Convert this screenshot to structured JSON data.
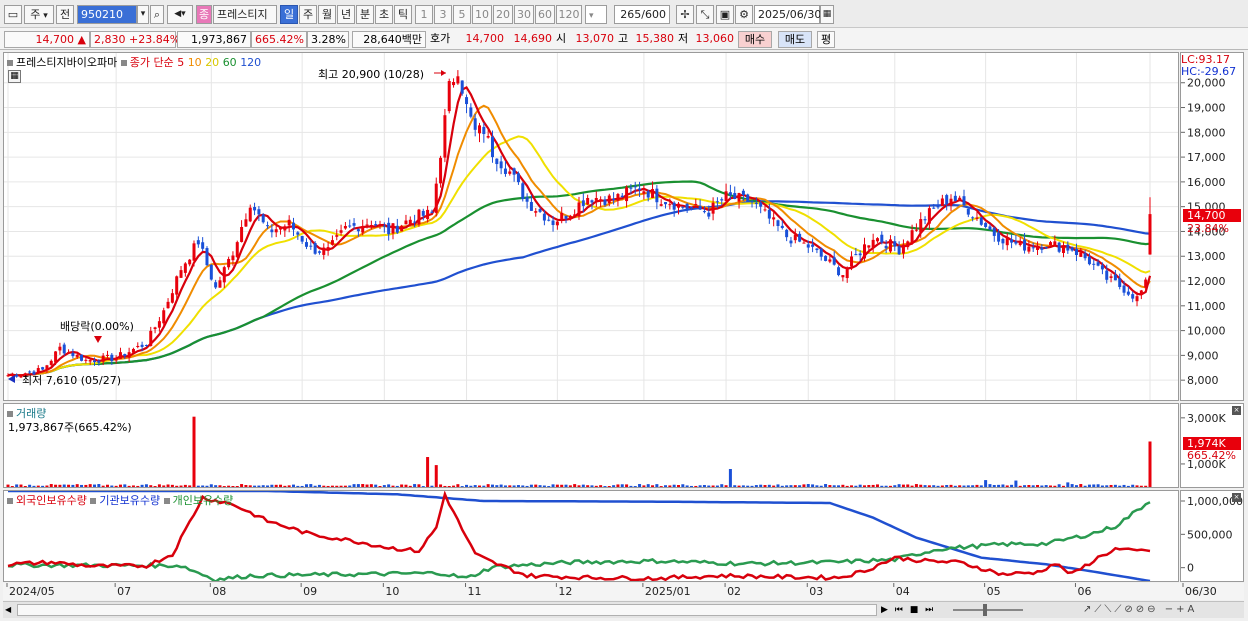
{
  "toolbar": {
    "market_label": "주",
    "prev_label": "전",
    "code": "950210",
    "name_badge": "종",
    "stock_name": "프레스티지",
    "period_day": "일",
    "period_week": "주",
    "period_month": "월",
    "period_year": "년",
    "period_minute": "분",
    "period_second": "초",
    "period_tick": "틱",
    "intervals": [
      "1",
      "3",
      "5",
      "10",
      "20",
      "30",
      "60",
      "120"
    ],
    "count": "265",
    "count_total": "/600",
    "date": "2025/06/30"
  },
  "quote": {
    "price": "14,700",
    "arrow": "▲",
    "change": "2,830",
    "change_pct": "+23.84%",
    "volume": "1,973,867",
    "volume_ratio": "665.42%",
    "turnover_pct": "3.28%",
    "amount": "28,640백만",
    "bid_label": "호가",
    "ask_price": "14,700",
    "bid_price": "14,690",
    "open_label": "시",
    "open": "13,070",
    "high_label": "고",
    "high": "15,380",
    "low_label": "저",
    "low": "13,060",
    "buy_label": "매수",
    "sell_label": "매도",
    "eval_label": "평"
  },
  "price_panel": {
    "legend_name": "프레스티지바이오파마",
    "legend_ma_label": "종가 단순",
    "ma_labels": [
      "5",
      "10",
      "20",
      "60",
      "120"
    ],
    "ma_colors": [
      "#d8000c",
      "#f08c00",
      "#f0e000",
      "#1a9030",
      "#2050d0"
    ],
    "high_annot": "최고 20,900 (10/28)",
    "low_annot": "최저 7,610 (05/27)",
    "dividend_annot": "배당락(0.00%)",
    "lc": "LC:93.17",
    "hc": "HC:-29.67",
    "current_tag": "14,700",
    "current_pct": "23.84%"
  },
  "volume_panel": {
    "title": "거래량",
    "value_label": "1,973,867주(665.42%)",
    "current_tag": "1,974K",
    "current_pct": "665.42%"
  },
  "holdings_panel": {
    "foreign_label": "외국인보유수량",
    "inst_label": "기관보유수량",
    "indiv_label": "개인보유수량"
  },
  "chart_data": {
    "type": "candlestick",
    "price_axis": {
      "ticks": [
        "20,000",
        "19,000",
        "18,000",
        "17,000",
        "16,000",
        "15,000",
        "14,000",
        "13,000",
        "12,000",
        "11,000",
        "10,000",
        "9,000",
        "8,000"
      ],
      "range": [
        7200,
        21200
      ]
    },
    "volume_axis": {
      "ticks": [
        "3,000K",
        "1,000K"
      ],
      "range": [
        0,
        3600
      ]
    },
    "holdings_axis": {
      "ticks": [
        "1,000,000",
        "500,000",
        "0"
      ],
      "range": [
        -200000,
        1150000
      ]
    },
    "x_labels": [
      "2024/05",
      "07",
      "08",
      "09",
      "10",
      "11",
      "12",
      "2025/01",
      "02",
      "03",
      "04",
      "05",
      "06",
      "06/30"
    ],
    "x_label_index": [
      0,
      25,
      47,
      68,
      87,
      106,
      127,
      147,
      166,
      185,
      205,
      226,
      247,
      264
    ],
    "close_keys": [
      [
        0,
        8200
      ],
      [
        8,
        8400
      ],
      [
        12,
        9300
      ],
      [
        18,
        8800
      ],
      [
        25,
        8900
      ],
      [
        32,
        9500
      ],
      [
        36,
        10800
      ],
      [
        40,
        12500
      ],
      [
        44,
        13600
      ],
      [
        48,
        11700
      ],
      [
        52,
        13200
      ],
      [
        56,
        15200
      ],
      [
        60,
        14000
      ],
      [
        65,
        14300
      ],
      [
        70,
        13300
      ],
      [
        74,
        13200
      ],
      [
        78,
        14100
      ],
      [
        84,
        14400
      ],
      [
        88,
        14000
      ],
      [
        94,
        14600
      ],
      [
        98,
        14700
      ],
      [
        100,
        17200
      ],
      [
        102,
        19800
      ],
      [
        104,
        20600
      ],
      [
        106,
        19000
      ],
      [
        108,
        18000
      ],
      [
        110,
        18100
      ],
      [
        112,
        17200
      ],
      [
        116,
        16400
      ],
      [
        120,
        15200
      ],
      [
        126,
        14400
      ],
      [
        130,
        14800
      ],
      [
        134,
        15400
      ],
      [
        140,
        15300
      ],
      [
        146,
        15800
      ],
      [
        150,
        15400
      ],
      [
        156,
        15000
      ],
      [
        162,
        14800
      ],
      [
        166,
        15400
      ],
      [
        172,
        15200
      ],
      [
        176,
        14500
      ],
      [
        180,
        13800
      ],
      [
        185,
        13400
      ],
      [
        190,
        12700
      ],
      [
        193,
        12300
      ],
      [
        196,
        13000
      ],
      [
        200,
        13800
      ],
      [
        206,
        13300
      ],
      [
        210,
        14200
      ],
      [
        214,
        14900
      ],
      [
        218,
        15400
      ],
      [
        222,
        14900
      ],
      [
        228,
        13900
      ],
      [
        234,
        13400
      ],
      [
        240,
        13500
      ],
      [
        246,
        13300
      ],
      [
        250,
        12800
      ],
      [
        254,
        12100
      ],
      [
        258,
        11700
      ],
      [
        261,
        11300
      ],
      [
        263,
        11870
      ],
      [
        264,
        14700
      ]
    ],
    "volume_spikes": [
      [
        43,
        3050
      ],
      [
        97,
        1300
      ],
      [
        99,
        950
      ],
      [
        167,
        780
      ],
      [
        226,
        300
      ],
      [
        233,
        280
      ],
      [
        245,
        200
      ],
      [
        264,
        1974
      ]
    ],
    "holdings_keys": {
      "foreign": [
        [
          0,
          50000
        ],
        [
          10,
          80000
        ],
        [
          20,
          20000
        ],
        [
          32,
          30000
        ],
        [
          38,
          200000
        ],
        [
          45,
          1050000
        ],
        [
          52,
          950000
        ],
        [
          60,
          700000
        ],
        [
          70,
          500000
        ],
        [
          80,
          400000
        ],
        [
          88,
          300000
        ],
        [
          95,
          250000
        ],
        [
          99,
          600000
        ],
        [
          101,
          1100000
        ],
        [
          104,
          700000
        ],
        [
          108,
          200000
        ],
        [
          112,
          80000
        ],
        [
          120,
          -120000
        ],
        [
          135,
          -150000
        ],
        [
          150,
          -160000
        ],
        [
          165,
          -120000
        ],
        [
          180,
          -140000
        ],
        [
          192,
          -150000
        ],
        [
          198,
          -50000
        ],
        [
          205,
          150000
        ],
        [
          212,
          100000
        ],
        [
          220,
          80000
        ],
        [
          230,
          -100000
        ],
        [
          238,
          -70000
        ],
        [
          242,
          60000
        ],
        [
          246,
          -100000
        ],
        [
          252,
          150000
        ],
        [
          256,
          280000
        ],
        [
          260,
          250000
        ],
        [
          264,
          260000
        ]
      ],
      "institution": [
        [
          0,
          1150000
        ],
        [
          60,
          1150000
        ],
        [
          90,
          1100000
        ],
        [
          110,
          1000000
        ],
        [
          150,
          990000
        ],
        [
          190,
          970000
        ],
        [
          200,
          750000
        ],
        [
          210,
          450000
        ],
        [
          225,
          150000
        ],
        [
          240,
          50000
        ],
        [
          250,
          -50000
        ],
        [
          264,
          -200000
        ]
      ],
      "individual": [
        [
          0,
          40000
        ],
        [
          40,
          30000
        ],
        [
          48,
          -180000
        ],
        [
          56,
          -120000
        ],
        [
          80,
          -100000
        ],
        [
          100,
          -80000
        ],
        [
          106,
          -160000
        ],
        [
          112,
          10000
        ],
        [
          130,
          80000
        ],
        [
          150,
          100000
        ],
        [
          170,
          60000
        ],
        [
          190,
          80000
        ],
        [
          205,
          120000
        ],
        [
          215,
          280000
        ],
        [
          230,
          350000
        ],
        [
          240,
          360000
        ],
        [
          250,
          500000
        ],
        [
          256,
          620000
        ],
        [
          264,
          1000000
        ]
      ]
    },
    "ma_periods": [
      5,
      10,
      20,
      60,
      120
    ]
  }
}
